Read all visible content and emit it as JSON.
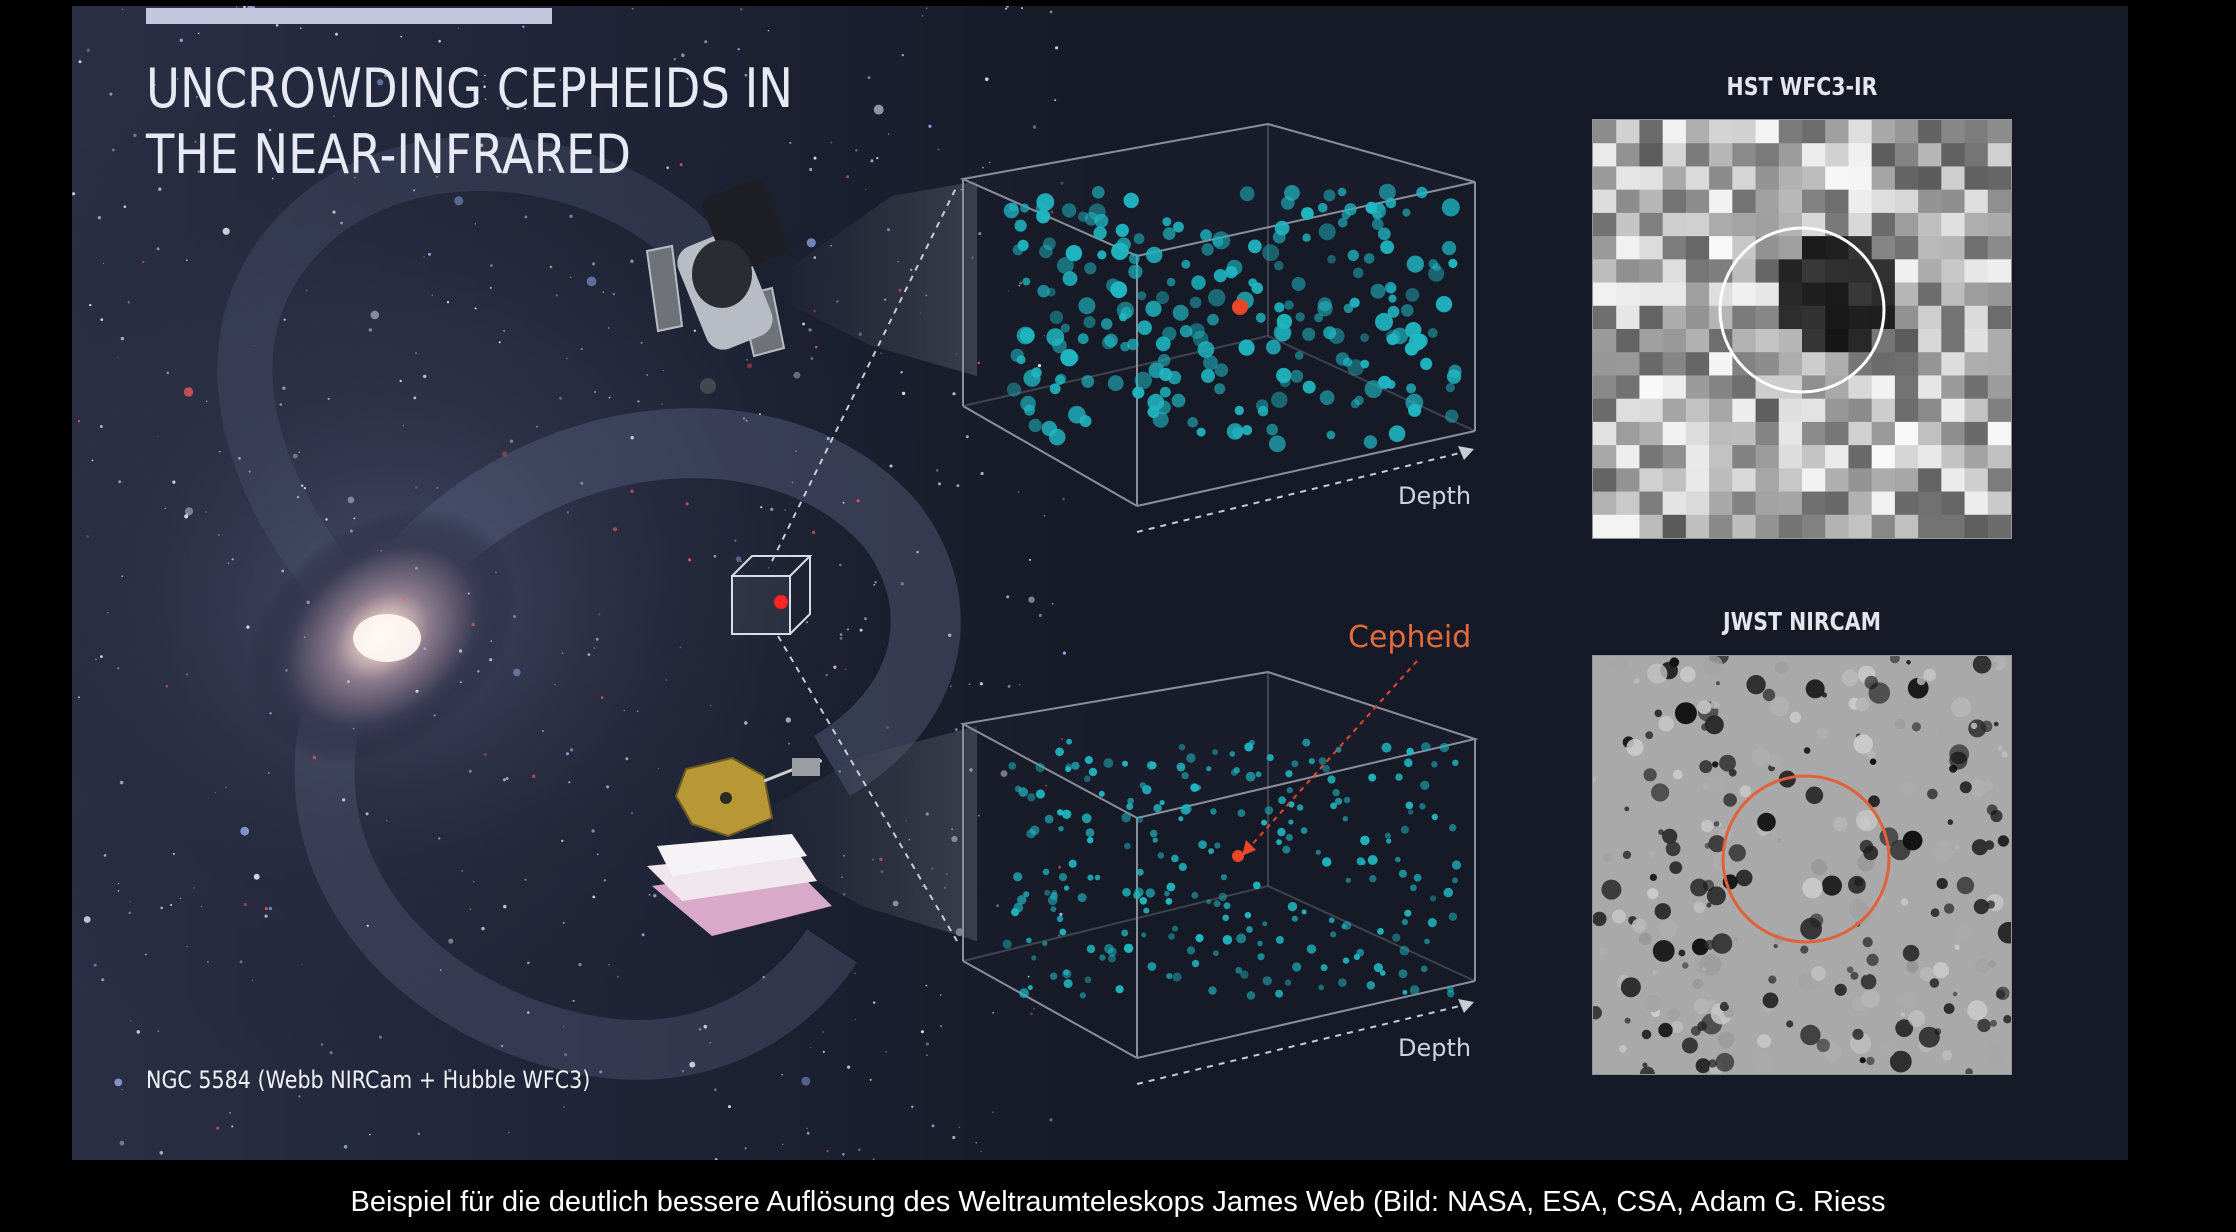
{
  "figure": {
    "title": "UNCROWDING CEPHEIDS IN THE NEAR-INFRARED",
    "source_label": "NGC 5584 (Webb NIRCam + Hubble WFC3)",
    "hst_label": "HST WFC3-IR",
    "jwst_label": "JWST NIRCAM",
    "depth_label_top": "Depth",
    "depth_label_bottom": "Depth",
    "cepheid_label": "Cepheid",
    "colors": {
      "background": "#161a26",
      "star_cyan": "#1fb7c2",
      "cepheid_red": "#e8472a",
      "jwst_circle": "#e0623a",
      "hst_circle": "#ffffff"
    }
  },
  "caption": "Beispiel für die deutlich bessere Auflösung des Weltraumteleskops James Web (Bild: NASA, ESA, CSA, Adam G. Riess"
}
